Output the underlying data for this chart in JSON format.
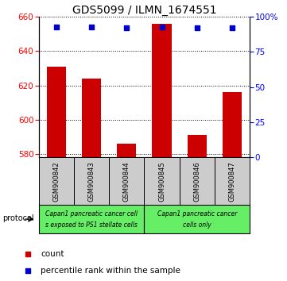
{
  "title": "GDS5099 / ILMN_1674551",
  "samples": [
    "GSM900842",
    "GSM900843",
    "GSM900844",
    "GSM900845",
    "GSM900846",
    "GSM900847"
  ],
  "counts": [
    631,
    624,
    586,
    656,
    591,
    616
  ],
  "percentile_ranks": [
    93,
    93,
    92,
    93,
    92,
    92
  ],
  "ylim_left": [
    578,
    660
  ],
  "ylim_right": [
    0,
    100
  ],
  "yticks_left": [
    580,
    600,
    620,
    640,
    660
  ],
  "yticks_right": [
    0,
    25,
    50,
    75,
    100
  ],
  "yticklabels_right": [
    "0",
    "25",
    "50",
    "75",
    "100%"
  ],
  "bar_color": "#cc0000",
  "dot_color": "#0000cc",
  "bar_bottom": 578,
  "proto_color": "#66ee66",
  "sample_box_color": "#cccccc",
  "legend_count_label": "count",
  "legend_pct_label": "percentile rank within the sample",
  "protocol_label": "protocol",
  "title_fontsize": 10,
  "tick_fontsize": 7.5,
  "sample_fontsize": 6.0,
  "proto_fontsize": 5.5,
  "legend_fontsize": 7.5
}
